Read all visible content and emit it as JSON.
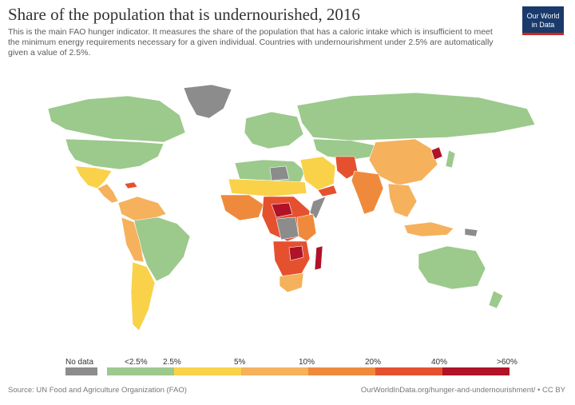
{
  "header": {
    "title": "Share of the population that is undernourished, 2016",
    "subtitle": "This is the main FAO hunger indicator. It measures the share of the population that has a caloric intake which is insufficient to meet the minimum energy requirements necessary for a given individual. Countries with undernourishment under 2.5% are automatically given a value of 2.5%.",
    "logo_line1": "Our World",
    "logo_line2": "in Data"
  },
  "legend": {
    "no_data_label": "No data",
    "labels": [
      "<2.5%",
      "2.5%",
      "5%",
      "10%",
      "20%",
      "40%",
      ">60%"
    ],
    "colors": {
      "no_data": "#8c8c8c",
      "bin0": "#9cc98c",
      "bin1": "#f9d24a",
      "bin2": "#f5b15c",
      "bin3": "#ef8a3c",
      "bin4": "#e5512f",
      "bin5": "#b01227"
    }
  },
  "footer": {
    "source": "Source: UN Food and Agriculture Organization (FAO)",
    "url": "OurWorldInData.org/hunger-and-undernourishment/ • CC BY"
  }
}
